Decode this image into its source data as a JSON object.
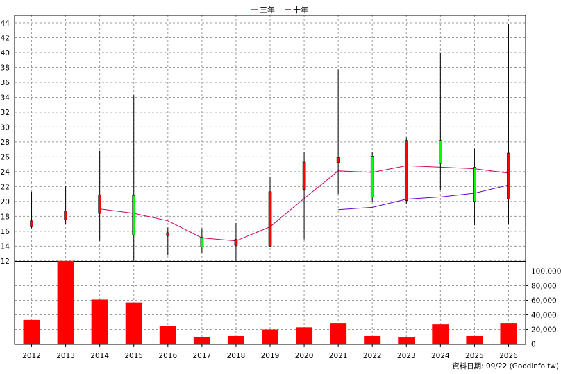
{
  "chart_data": [
    {
      "type": "candlestick",
      "legend_position": "top-center",
      "ylim": [
        12,
        44
      ],
      "yticks": [
        12,
        14,
        16,
        18,
        20,
        22,
        24,
        26,
        28,
        30,
        32,
        34,
        36,
        38,
        40,
        42,
        44
      ],
      "grid": true,
      "categories": [
        "2012",
        "2013",
        "2014",
        "2015",
        "2016",
        "2017",
        "2018",
        "2019",
        "2020",
        "2021",
        "2022",
        "2023",
        "2024",
        "2025",
        "2026"
      ],
      "candles": [
        {
          "year": "2012",
          "open": 17.4,
          "close": 16.6,
          "high": 21.3,
          "low": 16.4
        },
        {
          "year": "2013",
          "open": 18.7,
          "close": 17.5,
          "high": 22.1,
          "low": 17.0
        },
        {
          "year": "2014",
          "open": 20.9,
          "close": 18.4,
          "high": 26.8,
          "low": 14.7
        },
        {
          "year": "2015",
          "open": 15.5,
          "close": 20.8,
          "high": 34.3,
          "low": 12.0
        },
        {
          "year": "2016",
          "open": 15.8,
          "close": 15.4,
          "high": 16.5,
          "low": 12.8
        },
        {
          "year": "2017",
          "open": 13.9,
          "close": 15.2,
          "high": 16.4,
          "low": 13.1
        },
        {
          "year": "2018",
          "open": 14.9,
          "close": 14.1,
          "high": 17.1,
          "low": 12.0
        },
        {
          "year": "2019",
          "open": 21.3,
          "close": 14.0,
          "high": 23.3,
          "low": 13.9
        },
        {
          "year": "2020",
          "open": 25.3,
          "close": 21.6,
          "high": 26.6,
          "low": 14.9
        },
        {
          "year": "2021",
          "open": 25.9,
          "close": 25.2,
          "high": 37.7,
          "low": 21.0
        },
        {
          "year": "2022",
          "open": 20.6,
          "close": 26.1,
          "high": 26.6,
          "low": 19.9
        },
        {
          "year": "2023",
          "open": 28.2,
          "close": 20.1,
          "high": 28.6,
          "low": 19.7
        },
        {
          "year": "2024",
          "open": 25.1,
          "close": 28.2,
          "high": 39.9,
          "low": 21.5
        },
        {
          "year": "2025",
          "open": 20.0,
          "close": 24.6,
          "high": 27.1,
          "low": 16.8
        },
        {
          "year": "2026",
          "open": 26.5,
          "close": 20.3,
          "high": 43.9,
          "low": 16.9
        }
      ],
      "series": [
        {
          "name": "三年",
          "color": "#d4005a",
          "values": [
            null,
            null,
            19.0,
            18.4,
            17.4,
            15.1,
            14.7,
            16.6,
            20.4,
            24.1,
            23.9,
            24.8,
            24.6,
            24.4,
            23.8
          ]
        },
        {
          "name": "十年",
          "color": "#6a00d0",
          "values": [
            null,
            null,
            null,
            null,
            null,
            null,
            null,
            null,
            null,
            18.9,
            19.2,
            20.3,
            20.6,
            21.1,
            22.2
          ]
        }
      ]
    },
    {
      "type": "bar",
      "ylim": [
        0,
        110000
      ],
      "yticks": [
        "0",
        "20,000",
        "40,000",
        "60,000",
        "80,000",
        "100,000"
      ],
      "categories": [
        "2012",
        "2013",
        "2014",
        "2015",
        "2016",
        "2017",
        "2018",
        "2019",
        "2020",
        "2021",
        "2022",
        "2023",
        "2024",
        "2025",
        "2026"
      ],
      "values": [
        33000,
        114000,
        61000,
        57000,
        25000,
        10000,
        11000,
        20000,
        23000,
        28000,
        11000,
        9000,
        27000,
        11000,
        28000
      ],
      "color": "#ff0000"
    }
  ],
  "footer": "資料日期: 09/22  (Goodinfo.tw)",
  "colors": {
    "up_candle": "#ff0000",
    "down_candle": "#00ff00",
    "grid": "#999999"
  }
}
